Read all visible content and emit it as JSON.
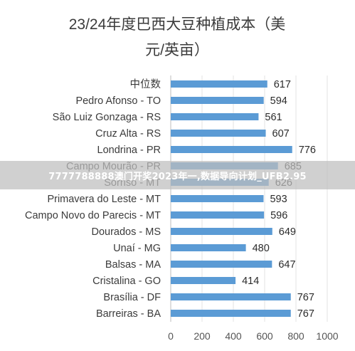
{
  "chart_data": {
    "type": "bar",
    "orientation": "horizontal",
    "title_lines": [
      "23/24年度巴西大豆种植成本（美",
      "元/英亩）"
    ],
    "categories": [
      "中位数",
      "Pedro Afonso - TO",
      "São Luiz Gonzaga - RS",
      "Cruz Alta - RS",
      "Londrina - PR",
      "Campo Mourão - PR",
      "Sorriso - MT",
      "Primavera do Leste - MT",
      "Campo Novo do Parecis - MT",
      "Dourados - MS",
      "Unaí - MG",
      "Balsas - MA",
      "Cristalina - GO",
      "Brasília - DF",
      "Barreiras - BA"
    ],
    "values": [
      617,
      594,
      561,
      607,
      776,
      685,
      626,
      593,
      596,
      649,
      480,
      647,
      414,
      767,
      767
    ],
    "xlim": [
      0,
      1000
    ],
    "xticks": [
      0,
      200,
      400,
      600,
      800,
      1000
    ],
    "grid": true,
    "bar_color": "#5b9bd5"
  },
  "overlay": {
    "banner_text": "7777788888澳门开奖2023年一,数据导向计划_UFB2.95"
  }
}
